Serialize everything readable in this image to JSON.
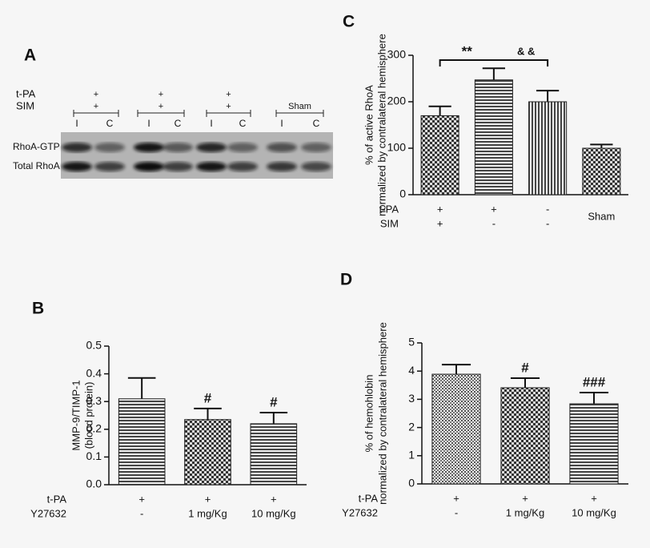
{
  "blot": {
    "panel": "A",
    "header_rows": [
      {
        "name": "t-PA",
        "labels": [
          "+",
          "+",
          "+",
          null
        ]
      },
      {
        "name": "SIM",
        "labels": [
          "+",
          "+",
          "+",
          "Sham"
        ]
      }
    ],
    "lanes": [
      "I",
      "C",
      "I",
      "C",
      "I",
      "C",
      "I",
      "C"
    ],
    "bands": [
      "RhoA-GTP",
      "Total RhoA"
    ]
  },
  "chart_data": [
    {
      "type": "bar",
      "panel": "C",
      "ylabel": [
        "% of active RhoA",
        "normalized by contralateral hemisphere"
      ],
      "categories": [
        null,
        null,
        null,
        "Sham"
      ],
      "x_rows": [
        {
          "name": "t-PA",
          "labels": [
            "+",
            "+",
            "-",
            null
          ]
        },
        {
          "name": "SIM",
          "labels": [
            "+",
            "-",
            "-",
            null
          ]
        }
      ],
      "values": [
        170,
        247,
        200,
        100
      ],
      "errors": [
        20,
        25,
        24,
        8
      ],
      "patterns": [
        "check",
        "hlines",
        "vlines",
        "check"
      ],
      "annotations": [
        "**",
        "& &"
      ],
      "ylim": [
        0,
        300
      ],
      "yticks": [
        0,
        100,
        200,
        300
      ]
    },
    {
      "type": "bar",
      "panel": "B",
      "ylabel": [
        "MMP-9/TIMP-1",
        "(blood protein)"
      ],
      "categories": [
        null,
        null,
        null
      ],
      "x_rows": [
        {
          "name": "t-PA",
          "labels": [
            "+",
            "+",
            "+"
          ]
        },
        {
          "name": "Y27632",
          "labels": [
            "-",
            "1 mg/Kg",
            "10 mg/Kg"
          ]
        }
      ],
      "values": [
        0.31,
        0.235,
        0.22
      ],
      "errors": [
        0.075,
        0.04,
        0.04
      ],
      "patterns": [
        "hlines",
        "check",
        "hlines"
      ],
      "bar_annotations": [
        null,
        "#",
        "#"
      ],
      "ylim": [
        0,
        0.5
      ],
      "yticks": [
        {
          "value": 0,
          "label": "0.0"
        },
        0.1,
        0.2,
        0.3,
        0.4,
        0.5
      ]
    },
    {
      "type": "bar",
      "panel": "D",
      "ylabel": [
        "% of hemohlobin",
        "normalized by contralateral hemisphere"
      ],
      "categories": [
        null,
        null,
        null
      ],
      "x_rows": [
        {
          "name": "t-PA",
          "labels": [
            "+",
            "+",
            "+"
          ]
        },
        {
          "name": "Y27632",
          "labels": [
            "-",
            "1 mg/Kg",
            "10 mg/Kg"
          ]
        }
      ],
      "values": [
        3.89,
        3.41,
        2.84
      ],
      "errors": [
        0.34,
        0.34,
        0.4
      ],
      "patterns": [
        "fine",
        "check",
        "hlines"
      ],
      "bar_annotations": [
        null,
        "#",
        "###"
      ],
      "ylim": [
        0,
        5
      ],
      "yticks": [
        0,
        1,
        2,
        3,
        4,
        5
      ]
    }
  ]
}
